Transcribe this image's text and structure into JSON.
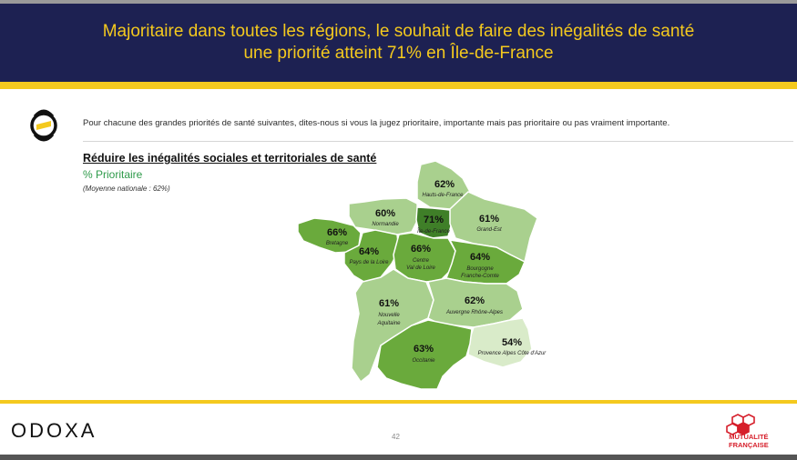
{
  "header": {
    "title_line1": "Majoritaire dans toutes les régions, le souhait de faire des inégalités de santé",
    "title_line2": "une priorité atteint 71% en Île-de-France"
  },
  "question": "Pour chacune des grandes priorités de santé suivantes, dites-nous si vous la jugez prioritaire, importante mais pas prioritaire ou pas vraiment importante.",
  "section": {
    "title": "Réduire les inégalités sociales et territoriales de santé",
    "subtitle": "% Prioritaire",
    "note": "(Moyenne nationale : 62%)"
  },
  "regions": {
    "hauts_de_france": {
      "pct": "62%",
      "name": "Hauts-de-France"
    },
    "normandie": {
      "pct": "60%",
      "name": "Normandie"
    },
    "ile_de_france": {
      "pct": "71%",
      "name": "Île-de-France"
    },
    "grand_est": {
      "pct": "61%",
      "name": "Grand-Est"
    },
    "bretagne": {
      "pct": "66%",
      "name": "Bretagne"
    },
    "pays_de_la_loire": {
      "pct": "64%",
      "name": "Pays de la Loire"
    },
    "centre": {
      "pct": "66%",
      "name_line1": "Centre",
      "name_line2": "Val de Loire"
    },
    "bourgogne": {
      "pct": "64%",
      "name_line1": "Bourgogne",
      "name_line2": "Franche-Comte"
    },
    "nouvelle_aquitaine": {
      "pct": "61%",
      "name_line1": "Nouvelle",
      "name_line2": "Aquitaine"
    },
    "auvergne": {
      "pct": "62%",
      "name": "Auvergne Rhône-Alpes"
    },
    "paca": {
      "pct": "54%",
      "name": "Provence Alpes Côte d'Azur"
    },
    "occitanie": {
      "pct": "63%",
      "name": "Occitanie"
    }
  },
  "colors": {
    "navy": "#1d2152",
    "gold": "#f4c91e",
    "green_dark": "#3f7f28",
    "green_mid": "#6aaa3c",
    "green_light": "#a9d08e",
    "green_pale": "#d9ebc9"
  },
  "footer": {
    "brand": "ODOXA",
    "page_number": "42",
    "partner_line1": "MUTUALITÉ",
    "partner_line2": "FRANÇAISE"
  }
}
